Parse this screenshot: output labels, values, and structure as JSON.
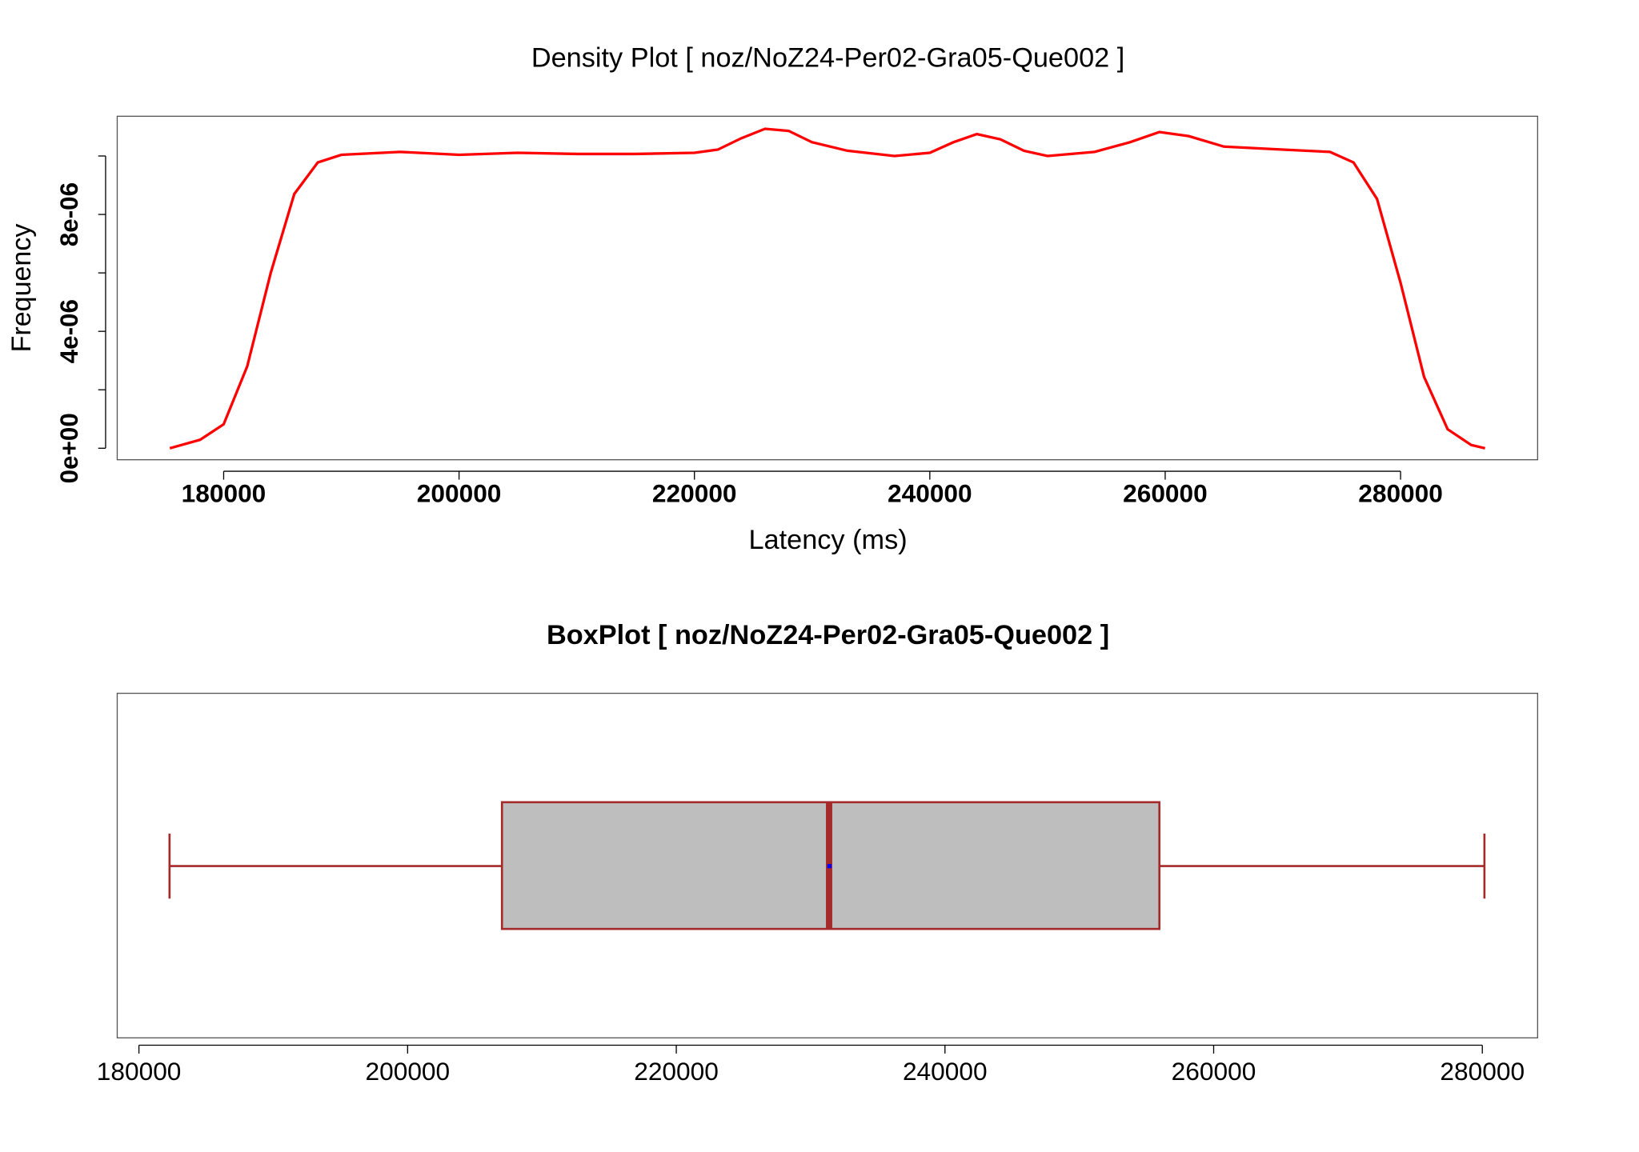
{
  "chart_data": [
    {
      "type": "line",
      "title": "Density Plot [ noz/NoZ24-Per02-Gra05-Que002 ]",
      "xlabel": "Latency (ms)",
      "ylabel": "Frequency",
      "color": "#ff0000",
      "x": [
        175426,
        178000,
        180000,
        182000,
        184000,
        186000,
        188000,
        190000,
        195000,
        200000,
        205000,
        210000,
        215000,
        220000,
        222000,
        224000,
        226000,
        228000,
        230000,
        233000,
        237000,
        240000,
        242000,
        244000,
        246000,
        248000,
        250000,
        254000,
        257000,
        259500,
        262000,
        265000,
        270000,
        274000,
        276000,
        278000,
        280000,
        282000,
        284000,
        286000,
        287175
      ],
      "values": [
        0,
        2.9e-07,
        8.2e-07,
        2.8e-06,
        6e-06,
        8.7e-06,
        9.78e-06,
        1.004e-05,
        1.014e-05,
        1.004e-05,
        1.011e-05,
        1.007e-05,
        1.007e-05,
        1.011e-05,
        1.022e-05,
        1.061e-05,
        1.093e-05,
        1.086e-05,
        1.047e-05,
        1.018e-05,
        1e-05,
        1.011e-05,
        1.047e-05,
        1.075e-05,
        1.057e-05,
        1.018e-05,
        1e-05,
        1.014e-05,
        1.047e-05,
        1.082e-05,
        1.068e-05,
        1.032e-05,
        1.022e-05,
        1.014e-05,
        9.78e-06,
        8.53e-06,
        5.66e-06,
        2.44e-06,
        6.5e-07,
        1.1e-07,
        0
      ],
      "xlim": [
        170956,
        291645
      ],
      "xticks": [
        180000,
        200000,
        220000,
        240000,
        260000,
        280000
      ],
      "ylim": [
        -3.94e-07,
        1.136e-05
      ],
      "yticks": [
        {
          "value": 0,
          "label": "0e+00"
        },
        {
          "value": 2e-06,
          "label": null
        },
        {
          "value": 4e-06,
          "label": "4e-06"
        },
        {
          "value": 6e-06,
          "label": null
        },
        {
          "value": 8e-06,
          "label": "8e-06"
        },
        {
          "value": 1e-05,
          "label": null
        }
      ]
    },
    {
      "type": "box",
      "title": "BoxPlot [ noz/NoZ24-Per02-Gra05-Que002 ]",
      "color": "#a52a2a",
      "fill": "#bebebe",
      "mean_color": "#0000ff",
      "whisker_low": 182278,
      "q1": 207023,
      "median": 231375,
      "q3": 255962,
      "whisker_high": 280157,
      "mean": 231400,
      "xlim": [
        178384,
        284116
      ],
      "xticks": [
        180000,
        200000,
        220000,
        240000,
        260000,
        280000
      ]
    }
  ]
}
